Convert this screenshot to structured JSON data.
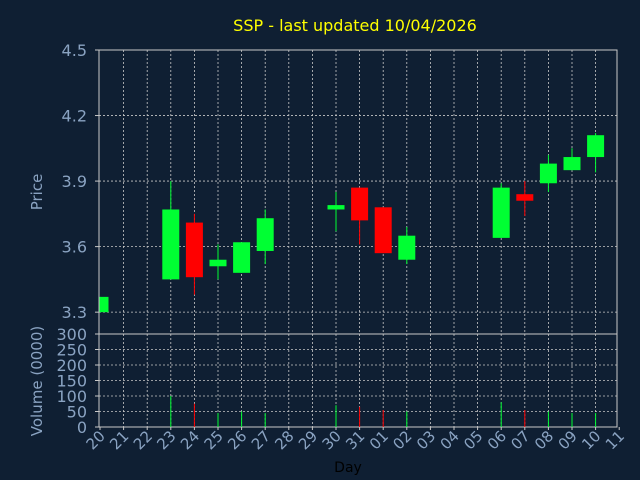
{
  "chart_data": {
    "type": "candlestick",
    "title": "SSP - last updated 10/04/2026",
    "xlabel": "Day",
    "colors": {
      "background": "#0f1f33",
      "grid": "#c8c8c8",
      "axis_text": "#8aa3c2",
      "title": "#ffff00",
      "up": "#00ff33",
      "down": "#ff0000"
    },
    "x_ticks": [
      "20",
      "21",
      "22",
      "23",
      "24",
      "25",
      "26",
      "27",
      "28",
      "29",
      "30",
      "31",
      "01",
      "02",
      "03",
      "04",
      "05",
      "06",
      "07",
      "08",
      "09",
      "10",
      "11"
    ],
    "price_panel": {
      "ylabel": "Price",
      "ylim": [
        3.2,
        4.5
      ],
      "y_ticks": [
        "3.3",
        "3.6",
        "3.9",
        "4.2",
        "4.5"
      ],
      "candles": [
        {
          "day": "20",
          "open": 3.3,
          "high": 3.37,
          "low": 3.3,
          "close": 3.37
        },
        {
          "day": "23",
          "open": 3.45,
          "high": 3.9,
          "low": 3.45,
          "close": 3.77
        },
        {
          "day": "24",
          "open": 3.71,
          "high": 3.75,
          "low": 3.38,
          "close": 3.46
        },
        {
          "day": "25",
          "open": 3.51,
          "high": 3.61,
          "low": 3.45,
          "close": 3.54
        },
        {
          "day": "26",
          "open": 3.48,
          "high": 3.62,
          "low": 3.48,
          "close": 3.62
        },
        {
          "day": "27",
          "open": 3.58,
          "high": 3.77,
          "low": 3.52,
          "close": 3.73
        },
        {
          "day": "30",
          "open": 3.77,
          "high": 3.85,
          "low": 3.67,
          "close": 3.79
        },
        {
          "day": "31",
          "open": 3.87,
          "high": 3.87,
          "low": 3.61,
          "close": 3.72
        },
        {
          "day": "01",
          "open": 3.78,
          "high": 3.78,
          "low": 3.57,
          "close": 3.57
        },
        {
          "day": "02",
          "open": 3.54,
          "high": 3.69,
          "low": 3.52,
          "close": 3.65
        },
        {
          "day": "06",
          "open": 3.64,
          "high": 3.89,
          "low": 3.64,
          "close": 3.87
        },
        {
          "day": "07",
          "open": 3.84,
          "high": 3.9,
          "low": 3.74,
          "close": 3.81
        },
        {
          "day": "08",
          "open": 3.89,
          "high": 4.02,
          "low": 3.85,
          "close": 3.98
        },
        {
          "day": "09",
          "open": 3.95,
          "high": 4.05,
          "low": 3.95,
          "close": 4.01
        },
        {
          "day": "10",
          "open": 4.01,
          "high": 4.12,
          "low": 3.94,
          "close": 4.11
        }
      ]
    },
    "volume_panel": {
      "ylabel": "Volume (0000)",
      "ylim": [
        0,
        300
      ],
      "y_ticks": [
        "0",
        "50",
        "100",
        "150",
        "200",
        "250",
        "300"
      ],
      "bars": [
        {
          "day": "23",
          "value": 100,
          "direction": "up"
        },
        {
          "day": "24",
          "value": 75,
          "direction": "down"
        },
        {
          "day": "25",
          "value": 45,
          "direction": "up"
        },
        {
          "day": "26",
          "value": 50,
          "direction": "up"
        },
        {
          "day": "27",
          "value": 45,
          "direction": "up"
        },
        {
          "day": "30",
          "value": 70,
          "direction": "up"
        },
        {
          "day": "31",
          "value": 65,
          "direction": "down"
        },
        {
          "day": "01",
          "value": 55,
          "direction": "down"
        },
        {
          "day": "02",
          "value": 50,
          "direction": "up"
        },
        {
          "day": "06",
          "value": 80,
          "direction": "up"
        },
        {
          "day": "07",
          "value": 55,
          "direction": "down"
        },
        {
          "day": "08",
          "value": 50,
          "direction": "up"
        },
        {
          "day": "09",
          "value": 45,
          "direction": "up"
        },
        {
          "day": "10",
          "value": 45,
          "direction": "up"
        }
      ]
    }
  }
}
